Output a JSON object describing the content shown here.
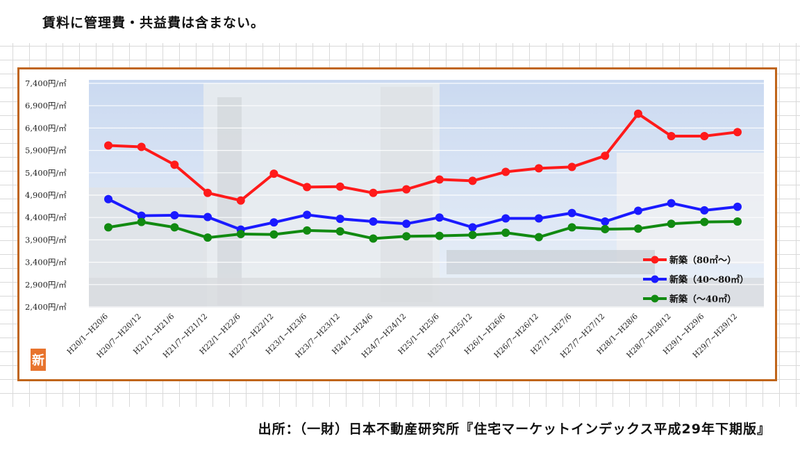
{
  "header": {
    "note": "賃料に管理費・共益費は含まない。",
    "source": "出所：（一財）日本不動産研究所『住宅マーケットインデックス平成29年下期版』"
  },
  "badge": {
    "text": "新"
  },
  "colors": {
    "frame": "#c0651a",
    "badge": "#e8742e"
  },
  "chart_data": {
    "type": "line",
    "title": "",
    "xlabel": "",
    "ylabel": "",
    "ylim": [
      2400,
      7400
    ],
    "yticks": [
      "7,400円/㎡",
      "6,900円/㎡",
      "6,400円/㎡",
      "5,900円/㎡",
      "5,400円/㎡",
      "4,900円/㎡",
      "4,400円/㎡",
      "3,900円/㎡",
      "3,400円/㎡",
      "2,900円/㎡",
      "2,400円/㎡"
    ],
    "categories": [
      "H20/1~H20/6",
      "H20/7~H20/12",
      "H21/1~H21/6",
      "H21/7~H21/12",
      "H22/1~H22/6",
      "H22/7~H22/12",
      "H23/1~H23/6",
      "H23/7~H23/12",
      "H24/1~H24/6",
      "H24/7~H24/12",
      "H25/1~H25/6",
      "H25/7~H25/12",
      "H26/1~H26/6",
      "H26/7~H26/12",
      "H27/1~H27/6",
      "H27/7~H27/12",
      "H28/1~H28/6",
      "H28/7~H28/12",
      "H29/1~H29/6",
      "H29/7~H29/12"
    ],
    "grid": true,
    "legend_position": "bottom-right",
    "series": [
      {
        "name": "新築（80㎡～）",
        "color": "#ff1a1a",
        "values": [
          6010,
          5980,
          5580,
          4950,
          4780,
          5380,
          5080,
          5090,
          4950,
          5030,
          5250,
          5220,
          5420,
          5500,
          5530,
          5780,
          6720,
          6220,
          6220,
          6310
        ]
      },
      {
        "name": "新築（40～80㎡）",
        "color": "#1a1aff",
        "values": [
          4810,
          4440,
          4450,
          4410,
          4130,
          4290,
          4460,
          4370,
          4310,
          4260,
          4400,
          4180,
          4380,
          4380,
          4500,
          4310,
          4550,
          4720,
          4560,
          4640
        ]
      },
      {
        "name": "新築（～40㎡）",
        "color": "#118a11",
        "values": [
          4180,
          4300,
          4180,
          3950,
          4030,
          4020,
          4110,
          4090,
          3930,
          3980,
          3990,
          4010,
          4060,
          3960,
          4180,
          4140,
          4150,
          4260,
          4300,
          4310
        ]
      }
    ]
  }
}
